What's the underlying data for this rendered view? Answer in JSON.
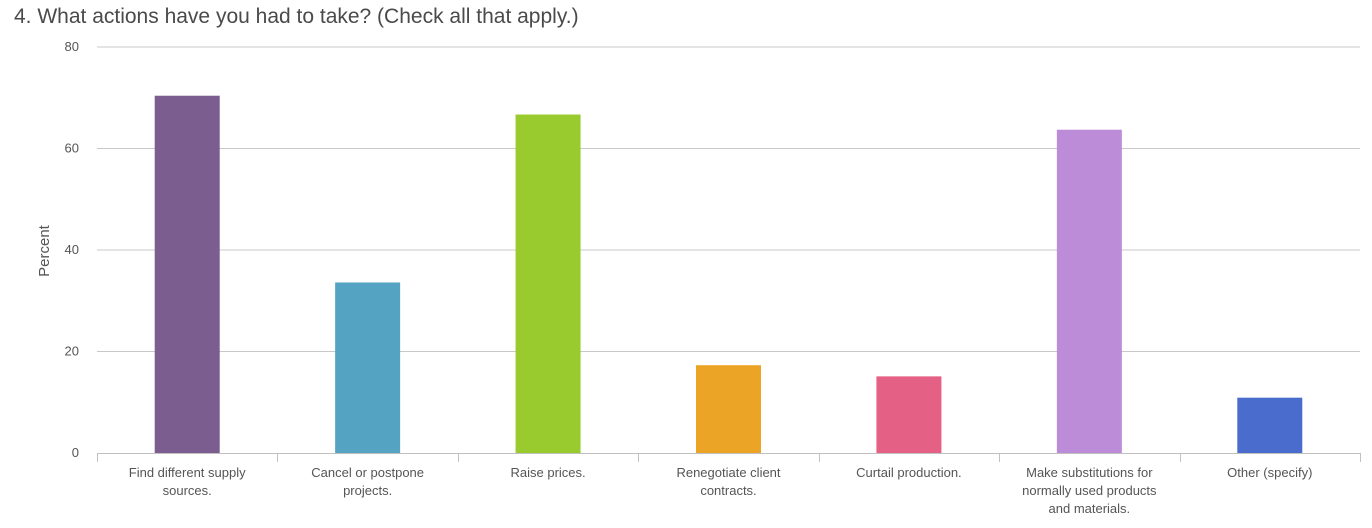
{
  "chart_data": {
    "type": "bar",
    "title": "4. What actions have you had to take? (Check all that apply.)",
    "ylabel": "Percent",
    "xlabel": "",
    "ylim": [
      0,
      80
    ],
    "yticks": [
      0,
      20,
      40,
      60,
      80
    ],
    "grid": true,
    "categories": [
      [
        "Find different supply",
        "sources."
      ],
      [
        "Cancel or postpone",
        "projects."
      ],
      [
        "Raise prices."
      ],
      [
        "Renegotiate client",
        "contracts."
      ],
      [
        "Curtail production."
      ],
      [
        "Make substitutions for",
        "normally used products",
        "and materials."
      ],
      [
        "Other (specify)"
      ]
    ],
    "values": [
      70.4,
      33.6,
      66.7,
      17.3,
      15.1,
      63.7,
      10.9
    ],
    "colors": [
      "#7b5e8f",
      "#54a3c2",
      "#9acb2e",
      "#eca427",
      "#e46084",
      "#bd8cd9",
      "#4a6ccd"
    ]
  }
}
